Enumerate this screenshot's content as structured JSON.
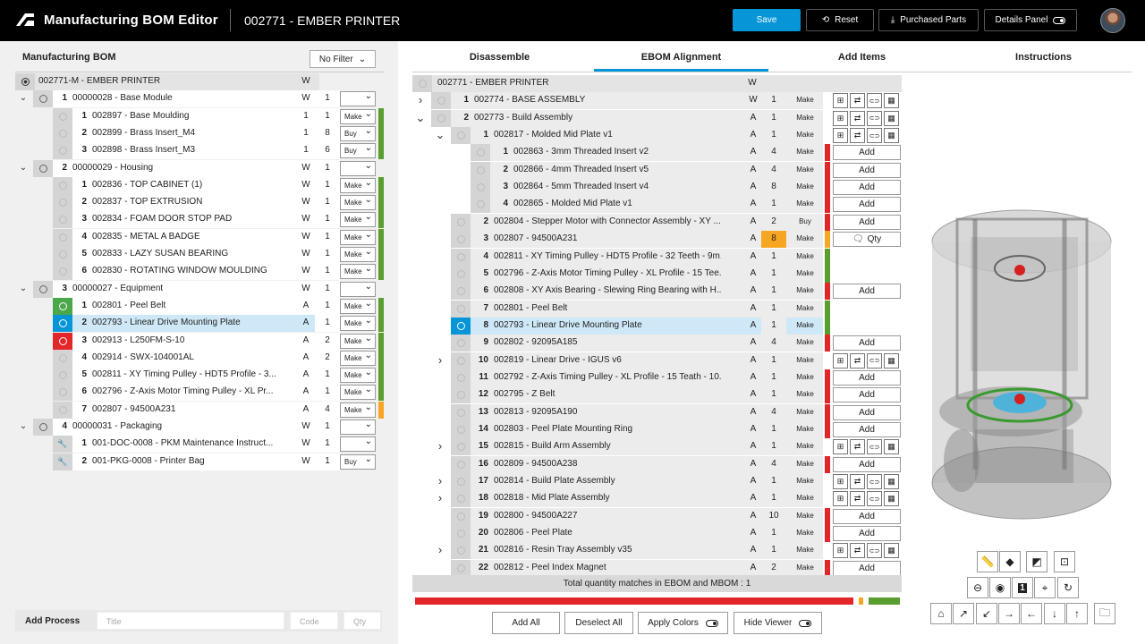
{
  "header": {
    "app_title": "Manufacturing BOM Editor",
    "context": "002771 - EMBER PRINTER",
    "save": "Save",
    "reset": "Reset",
    "purchased": "Purchased Parts",
    "details": "Details Panel"
  },
  "left": {
    "title": "Manufacturing BOM",
    "filter": "No Filter",
    "root": {
      "name": "002771-M - EMBER PRINTER",
      "type": "W"
    },
    "rows": [
      {
        "lvl": 1,
        "num": "1",
        "name": "00000028 - Base Module",
        "type": "W",
        "qty": "1",
        "dd": "",
        "chev": "v",
        "icon": "ring"
      },
      {
        "lvl": 2,
        "num": "1",
        "name": "002897 - Base Moulding",
        "type": "1",
        "qty": "1",
        "dd": "Make",
        "bar": "#5a9e2f"
      },
      {
        "lvl": 2,
        "num": "2",
        "name": "002899 - Brass Insert_M4",
        "type": "1",
        "qty": "8",
        "dd": "Buy",
        "bar": "#5a9e2f"
      },
      {
        "lvl": 2,
        "num": "3",
        "name": "002898 - Brass Insert_M3",
        "type": "1",
        "qty": "6",
        "dd": "Buy",
        "bar": "#5a9e2f"
      },
      {
        "lvl": 1,
        "num": "2",
        "name": "00000029 - Housing",
        "type": "W",
        "qty": "1",
        "dd": "",
        "chev": "v",
        "icon": "ring"
      },
      {
        "lvl": 2,
        "num": "1",
        "name": "002836 - TOP CABINET (1)",
        "type": "W",
        "qty": "1",
        "dd": "Make",
        "bar": "#5a9e2f"
      },
      {
        "lvl": 2,
        "num": "2",
        "name": "002837 - TOP EXTRUSION",
        "type": "W",
        "qty": "1",
        "dd": "Make",
        "bar": "#5a9e2f"
      },
      {
        "lvl": 2,
        "num": "3",
        "name": "002834 - FOAM DOOR STOP PAD",
        "type": "W",
        "qty": "1",
        "dd": "Make",
        "bar": "#5a9e2f"
      },
      {
        "lvl": 2,
        "num": "4",
        "name": "002835 - METAL A BADGE",
        "type": "W",
        "qty": "1",
        "dd": "Make",
        "bar": "#5a9e2f"
      },
      {
        "lvl": 2,
        "num": "5",
        "name": "002833 - LAZY SUSAN BEARING",
        "type": "W",
        "qty": "1",
        "dd": "Make",
        "bar": "#5a9e2f"
      },
      {
        "lvl": 2,
        "num": "6",
        "name": "002830 - ROTATING WINDOW MOULDING",
        "type": "W",
        "qty": "1",
        "dd": "Make",
        "bar": "#5a9e2f"
      },
      {
        "lvl": 1,
        "num": "3",
        "name": "00000027 - Equipment",
        "type": "W",
        "qty": "1",
        "dd": "",
        "chev": "v",
        "icon": "ring"
      },
      {
        "lvl": 2,
        "num": "1",
        "name": "002801 - Peel Belt",
        "type": "A",
        "qty": "1",
        "dd": "Make",
        "bar": "#5a9e2f",
        "ibg": "g"
      },
      {
        "lvl": 2,
        "num": "2",
        "name": "002793 - Linear Drive Mounting Plate",
        "type": "A",
        "qty": "1",
        "dd": "Make",
        "bar": "#5a9e2f",
        "ibg": "b",
        "sel": true
      },
      {
        "lvl": 2,
        "num": "3",
        "name": "002913 - L250FM-S-10",
        "type": "A",
        "qty": "2",
        "dd": "Make",
        "bar": "#5a9e2f",
        "ibg": "r"
      },
      {
        "lvl": 2,
        "num": "4",
        "name": "002914 - SWX-104001AL",
        "type": "A",
        "qty": "2",
        "dd": "Make",
        "bar": "#5a9e2f"
      },
      {
        "lvl": 2,
        "num": "5",
        "name": "002811 - XY Timing Pulley - HDT5 Profile - 3...",
        "type": "A",
        "qty": "1",
        "dd": "Make",
        "bar": "#5a9e2f"
      },
      {
        "lvl": 2,
        "num": "6",
        "name": "002796 - Z-Axis Motor Timing Pulley - XL Pr...",
        "type": "A",
        "qty": "1",
        "dd": "Make",
        "bar": "#5a9e2f"
      },
      {
        "lvl": 2,
        "num": "7",
        "name": "002807 - 94500A231",
        "type": "A",
        "qty": "4",
        "dd": "Make",
        "bar": "#f6a623"
      },
      {
        "lvl": 1,
        "num": "4",
        "name": "00000031 - Packaging",
        "type": "W",
        "qty": "1",
        "dd": "",
        "chev": "v",
        "icon": "ring"
      },
      {
        "lvl": 2,
        "num": "1",
        "name": "001-DOC-0008 - PKM Maintenance Instruct...",
        "type": "W",
        "qty": "1",
        "dd": "",
        "icon": "wrench"
      },
      {
        "lvl": 2,
        "num": "2",
        "name": "001-PKG-0008 - Printer Bag",
        "type": "W",
        "qty": "1",
        "dd": "Buy",
        "icon": "wrench"
      }
    ],
    "add_process": {
      "label": "Add Process",
      "title_ph": "Title",
      "code_ph": "Code",
      "qty_ph": "Qty"
    }
  },
  "tabs": [
    "Disassemble",
    "EBOM Alignment",
    "Add Items",
    "Instructions"
  ],
  "ebom": {
    "root": {
      "name": "002771 - EMBER PRINTER",
      "type": "W"
    },
    "rows": [
      {
        "lvl": 1,
        "num": "1",
        "name": "002774 - BASE ASSEMBLY",
        "type": "W",
        "qty": "1",
        "mk": "Make",
        "chev": ">",
        "act": "icons"
      },
      {
        "lvl": 1,
        "num": "2",
        "name": "002773 - Build Assembly",
        "type": "A",
        "qty": "1",
        "mk": "Make",
        "chev": "v",
        "act": "icons"
      },
      {
        "lvl": 2,
        "num": "1",
        "name": "002817 - Molded Mid Plate v1",
        "type": "A",
        "qty": "1",
        "mk": "Make",
        "chev": "v",
        "act": "icons"
      },
      {
        "lvl": 3,
        "num": "1",
        "name": "002863 - 3mm Threaded Insert v2",
        "type": "A",
        "qty": "4",
        "mk": "Make",
        "bar": "#e3262a",
        "act": "Add"
      },
      {
        "lvl": 3,
        "num": "2",
        "name": "002866 - 4mm Threaded Insert v5",
        "type": "A",
        "qty": "4",
        "mk": "Make",
        "bar": "#e3262a",
        "act": "Add"
      },
      {
        "lvl": 3,
        "num": "3",
        "name": "002864 - 5mm Threaded Insert v4",
        "type": "A",
        "qty": "8",
        "mk": "Make",
        "bar": "#e3262a",
        "act": "Add"
      },
      {
        "lvl": 3,
        "num": "4",
        "name": "002865 - Molded Mid Plate v1",
        "type": "A",
        "qty": "1",
        "mk": "Make",
        "bar": "#e3262a",
        "act": "Add"
      },
      {
        "lvl": 2,
        "num": "2",
        "name": "002804 - Stepper Motor with Connector Assembly - XY ...",
        "type": "A",
        "qty": "2",
        "mk": "Buy",
        "bar": "#e3262a",
        "act": "Add"
      },
      {
        "lvl": 2,
        "num": "3",
        "name": "002807 - 94500A231",
        "type": "A",
        "qty": "8",
        "mk": "Make",
        "bar": "#f6a623",
        "act": "Qty",
        "orange": true
      },
      {
        "lvl": 2,
        "num": "4",
        "name": "002811 - XY Timing Pulley - HDT5 Profile - 32 Teeth - 9m...",
        "type": "A",
        "qty": "1",
        "mk": "Make",
        "bar": "#5a9e2f"
      },
      {
        "lvl": 2,
        "num": "5",
        "name": "002796 - Z-Axis Motor Timing Pulley - XL Profile - 15 Tee...",
        "type": "A",
        "qty": "1",
        "mk": "Make",
        "bar": "#5a9e2f"
      },
      {
        "lvl": 2,
        "num": "6",
        "name": "002808 - XY Axis Bearing - Slewing Ring Bearing with H...",
        "type": "A",
        "qty": "1",
        "mk": "Make",
        "bar": "#e3262a",
        "act": "Add"
      },
      {
        "lvl": 2,
        "num": "7",
        "name": "002801 - Peel Belt",
        "type": "A",
        "qty": "1",
        "mk": "Make",
        "bar": "#5a9e2f"
      },
      {
        "lvl": 2,
        "num": "8",
        "name": "002793 - Linear Drive Mounting Plate",
        "type": "A",
        "qty": "1",
        "mk": "Make",
        "bar": "#5a9e2f",
        "sel": true
      },
      {
        "lvl": 2,
        "num": "9",
        "name": "002802 - 92095A185",
        "type": "A",
        "qty": "4",
        "mk": "Make",
        "bar": "#e3262a",
        "act": "Add"
      },
      {
        "lvl": 2,
        "num": "10",
        "name": "002819 - Linear Drive - IGUS v6",
        "type": "A",
        "qty": "1",
        "mk": "Make",
        "chev": ">",
        "act": "icons"
      },
      {
        "lvl": 2,
        "num": "11",
        "name": "002792 - Z-Axis Timing Pulley - XL Profile - 15 Teath - 10...",
        "type": "A",
        "qty": "1",
        "mk": "Make",
        "bar": "#e3262a",
        "act": "Add"
      },
      {
        "lvl": 2,
        "num": "12",
        "name": "002795 - Z Belt",
        "type": "A",
        "qty": "1",
        "mk": "Make",
        "bar": "#e3262a",
        "act": "Add"
      },
      {
        "lvl": 2,
        "num": "13",
        "name": "002813 - 92095A190",
        "type": "A",
        "qty": "4",
        "mk": "Make",
        "bar": "#e3262a",
        "act": "Add"
      },
      {
        "lvl": 2,
        "num": "14",
        "name": "002803 - Peel Plate Mounting Ring",
        "type": "A",
        "qty": "1",
        "mk": "Make",
        "bar": "#e3262a",
        "act": "Add"
      },
      {
        "lvl": 2,
        "num": "15",
        "name": "002815 - Build Arm Assembly",
        "type": "A",
        "qty": "1",
        "mk": "Make",
        "chev": ">",
        "act": "icons"
      },
      {
        "lvl": 2,
        "num": "16",
        "name": "002809 - 94500A238",
        "type": "A",
        "qty": "4",
        "mk": "Make",
        "bar": "#e3262a",
        "act": "Add"
      },
      {
        "lvl": 2,
        "num": "17",
        "name": "002814 - Build Plate Assembly",
        "type": "A",
        "qty": "1",
        "mk": "Make",
        "chev": ">",
        "act": "icons"
      },
      {
        "lvl": 2,
        "num": "18",
        "name": "002818 - Mid Plate Assembly",
        "type": "A",
        "qty": "1",
        "mk": "Make",
        "chev": ">",
        "act": "icons"
      },
      {
        "lvl": 2,
        "num": "19",
        "name": "002800 - 94500A227",
        "type": "A",
        "qty": "10",
        "mk": "Make",
        "bar": "#e3262a",
        "act": "Add"
      },
      {
        "lvl": 2,
        "num": "20",
        "name": "002806 - Peel Plate",
        "type": "A",
        "qty": "1",
        "mk": "Make",
        "bar": "#e3262a",
        "act": "Add"
      },
      {
        "lvl": 2,
        "num": "21",
        "name": "002816 - Resin Tray Assembly v35",
        "type": "A",
        "qty": "1",
        "mk": "Make",
        "chev": ">",
        "act": "icons"
      },
      {
        "lvl": 2,
        "num": "22",
        "name": "002812 - Peel Index Magnet",
        "type": "A",
        "qty": "2",
        "mk": "Make",
        "bar": "#e3262a",
        "act": "Add"
      }
    ],
    "match": "Total quantity matches in EBOM and MBOM : 1",
    "progress": {
      "red": 0.925,
      "orange": 0.01,
      "green": 0.1
    }
  },
  "bottom": {
    "add_all": "Add All",
    "deselect_all": "Deselect All",
    "apply_colors": "Apply Colors",
    "hide_viewer": "Hide Viewer"
  },
  "viewer_tools": [
    "ruler-icon",
    "cube-icon",
    "section-icon",
    "screenshot-icon",
    "zoom-out-icon",
    "eye-icon",
    "one-icon",
    "fit-icon",
    "rotate-icon",
    "home-icon",
    "arrow-ne-icon",
    "arrow-sw-icon",
    "arrow-right-icon",
    "arrow-left-icon",
    "arrow-down-icon",
    "arrow-up-icon",
    "folder-icon"
  ]
}
